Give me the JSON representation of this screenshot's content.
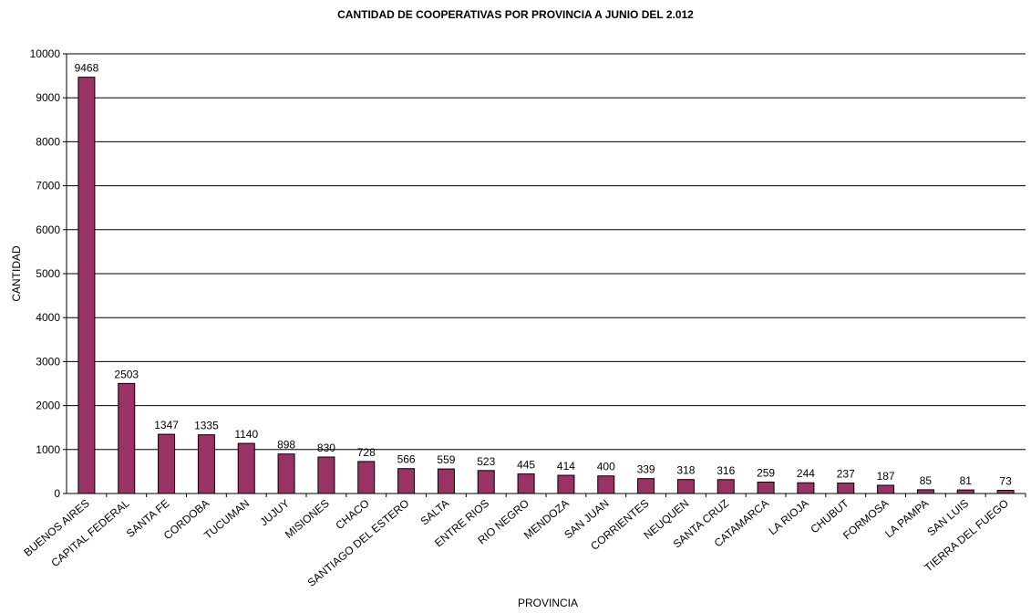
{
  "chart_data": {
    "type": "bar",
    "title": "CANTIDAD DE COOPERATIVAS POR PROVINCIA A JUNIO DEL 2.012",
    "xlabel": "PROVINCIA",
    "ylabel": "CANTIDAD",
    "ylim": [
      0,
      10000
    ],
    "yticks": [
      0,
      1000,
      2000,
      3000,
      4000,
      5000,
      6000,
      7000,
      8000,
      9000,
      10000
    ],
    "grid": true,
    "legend": "none",
    "bar_color": "#993366",
    "categories": [
      "BUENOS AIRES",
      "CAPITAL FEDERAL",
      "SANTA FE",
      "CORDOBA",
      "TUCUMAN",
      "JUJUY",
      "MISIONES",
      "CHACO",
      "SANTIAGO DEL ESTERO",
      "SALTA",
      "ENTRE RIOS",
      "RIO NEGRO",
      "MENDOZA",
      "SAN JUAN",
      "CORRIENTES",
      "NEUQUEN",
      "SANTA CRUZ",
      "CATAMARCA",
      "LA RIOJA",
      "CHUBUT",
      "FORMOSA",
      "LA PAMPA",
      "SAN LUIS",
      "TIERRA DEL FUEGO"
    ],
    "values": [
      9468,
      2503,
      1347,
      1335,
      1140,
      898,
      830,
      728,
      566,
      559,
      523,
      445,
      414,
      400,
      339,
      318,
      316,
      259,
      244,
      237,
      187,
      85,
      81,
      73
    ]
  }
}
